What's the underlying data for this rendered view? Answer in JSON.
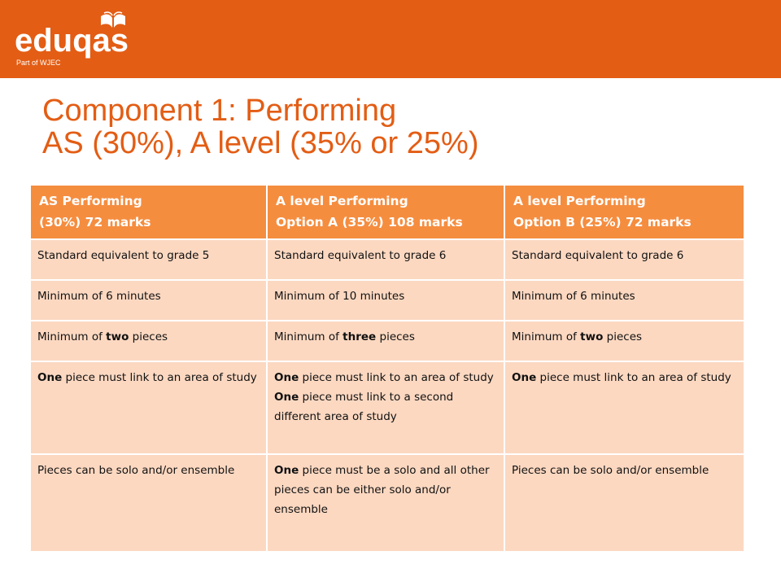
{
  "brand": {
    "name": "eduqas",
    "tagline": "Part of WJEC",
    "header_color": "#e35d14",
    "logo_icon": "open-book-icon"
  },
  "title": {
    "line1": "Component 1: Performing",
    "line2": "AS (30%), A level (35% or 25%)"
  },
  "colors": {
    "title": "#e35d14",
    "table_header": "#f58d3f",
    "table_cell": "#fcd8c1"
  },
  "table": {
    "headers": [
      {
        "line1": "AS Performing",
        "line2": "(30%) 72 marks"
      },
      {
        "line1": "A level Performing",
        "line2": "Option A (35%) 108 marks"
      },
      {
        "line1": "A level Performing",
        "line2": "Option B (25%) 72 marks"
      }
    ],
    "rows": [
      {
        "c1": "Standard equivalent to grade 5",
        "c2": "Standard equivalent to grade 6",
        "c3": "Standard equivalent to grade 6"
      },
      {
        "c1": "Minimum of 6 minutes",
        "c2": "Minimum of 10 minutes",
        "c3": "Minimum of 6 minutes"
      },
      {
        "c1": {
          "pre": "Minimum of ",
          "bold": "two",
          "post": " pieces"
        },
        "c2": {
          "pre": "Minimum of ",
          "bold": "three",
          "post": " pieces"
        },
        "c3": {
          "pre": "Minimum of ",
          "bold": "two",
          "post": " pieces"
        }
      },
      {
        "c1": {
          "bold": "One",
          "post": " piece must link to an area of study"
        },
        "c2": {
          "a_bold": "One",
          "a_post": " piece must link to an area of study",
          "b_bold": "One",
          "b_post": " piece must link to a second different area of study"
        },
        "c3": {
          "bold": "One",
          "post": " piece must link to an area of study"
        }
      },
      {
        "c1": "Pieces can be solo and/or ensemble",
        "c2": {
          "bold": "One",
          "post": " piece must be a solo and all other pieces can be either solo and/or ensemble"
        },
        "c3": "Pieces can be solo and/or ensemble"
      }
    ]
  }
}
